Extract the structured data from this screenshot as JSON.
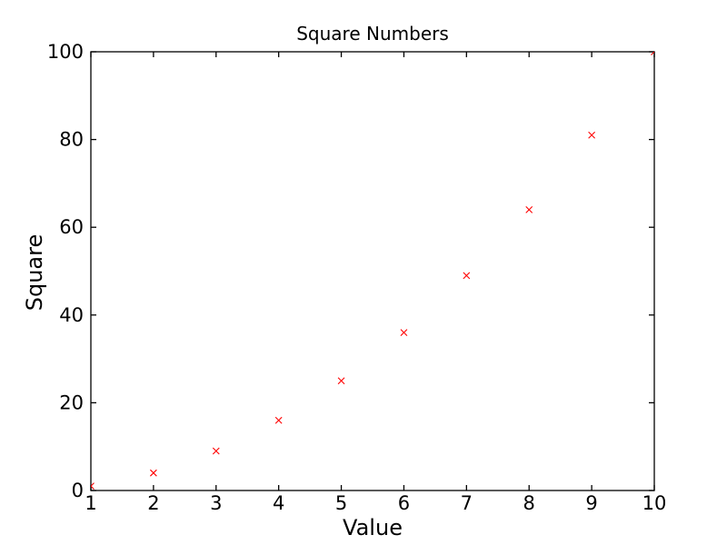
{
  "chart_data": {
    "type": "scatter",
    "title": "Square Numbers",
    "xlabel": "Value",
    "ylabel": "Square",
    "x": [
      1,
      2,
      3,
      4,
      5,
      6,
      7,
      8,
      9,
      10
    ],
    "y": [
      1,
      4,
      9,
      16,
      25,
      36,
      49,
      64,
      81,
      100
    ],
    "xlim": [
      1,
      10
    ],
    "ylim": [
      0,
      100
    ],
    "xticks": [
      1,
      2,
      3,
      4,
      5,
      6,
      7,
      8,
      9,
      10
    ],
    "yticks": [
      0,
      20,
      40,
      60,
      80,
      100
    ],
    "marker": "x",
    "marker_color": "#ff0000",
    "axis_color": "#000000",
    "background_color": "#ffffff",
    "grid": false,
    "legend": "none"
  }
}
